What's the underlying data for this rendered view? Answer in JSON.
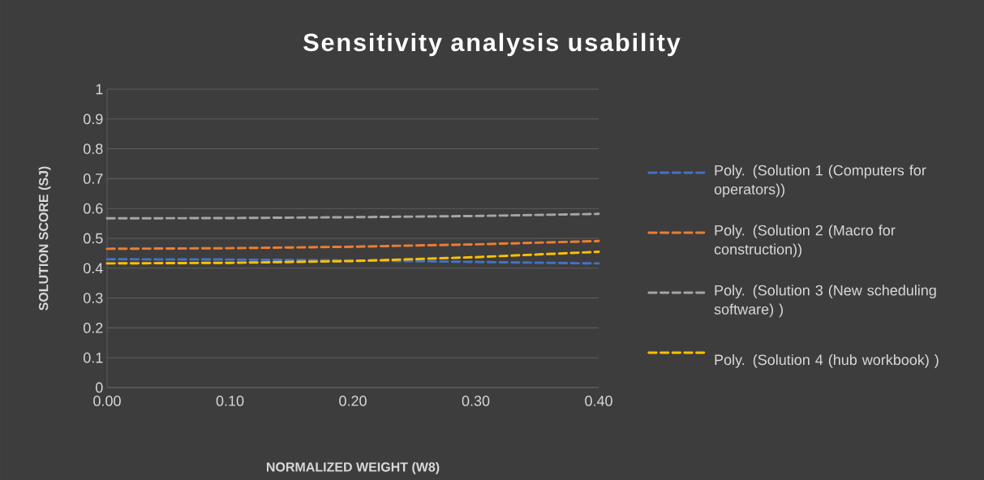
{
  "chart_data": {
    "type": "line",
    "title": "Sensitivity analysis usability",
    "xlabel": "NORMALIZED WEIGHT (W8)",
    "ylabel": "SOLUTION SCORE (SJ)",
    "x": [
      0,
      0.1,
      0.2,
      0.3,
      0.4
    ],
    "series": [
      {
        "name": "Poly. (Solution 1 (Computers for operators))",
        "color": "#4472c4",
        "values": [
          0.43,
          0.429,
          0.426,
          0.421,
          0.416
        ]
      },
      {
        "name": "Poly. (Solution 2 (Macro for construction))",
        "color": "#ed7d31",
        "values": [
          0.465,
          0.467,
          0.472,
          0.48,
          0.491
        ]
      },
      {
        "name": "Poly. (Solution 3 (New scheduling software) )",
        "color": "#a5a5a5",
        "values": [
          0.567,
          0.568,
          0.571,
          0.575,
          0.582
        ]
      },
      {
        "name": "Poly. (Solution 4 (hub workbook) )",
        "color": "#ffc000",
        "values": [
          0.416,
          0.418,
          0.424,
          0.437,
          0.455
        ]
      }
    ],
    "xlim": [
      0,
      0.4
    ],
    "ylim": [
      0,
      1
    ],
    "xticks": [
      {
        "value": 0,
        "label": "0.00"
      },
      {
        "value": 0.1,
        "label": "0.10"
      },
      {
        "value": 0.2,
        "label": "0.20"
      },
      {
        "value": 0.3,
        "label": "0.30"
      },
      {
        "value": 0.4,
        "label": "0.40"
      }
    ],
    "yticks": [
      0,
      0.1,
      0.2,
      0.3,
      0.4,
      0.5,
      0.6,
      0.7,
      0.8,
      0.9,
      1
    ],
    "grid": "y",
    "legend": "right",
    "marker": "none",
    "line_style": "dashed"
  }
}
